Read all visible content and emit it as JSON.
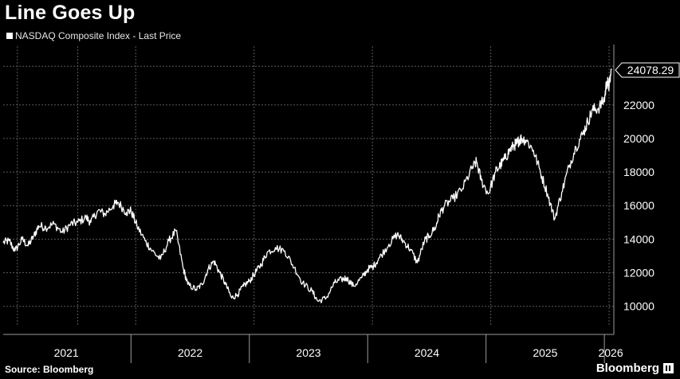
{
  "header": {
    "title": "Line Goes Up"
  },
  "legend": {
    "label": "NASDAQ Composite Index - Last Price"
  },
  "footer": {
    "source": "Source: Bloomberg",
    "brand": "Bloomberg"
  },
  "colors": {
    "background": "#000000",
    "line": "#ffffff",
    "grid": "#5a5a5a",
    "text": "#ffffff"
  },
  "chart_data": {
    "type": "line",
    "title": "Line Goes Up",
    "xlabel": "",
    "ylabel": "",
    "x_tick_labels": [
      "2021",
      "2022",
      "2023",
      "2024",
      "2025",
      "2026"
    ],
    "y_ticks": [
      10000,
      12000,
      14000,
      16000,
      18000,
      20000,
      22000
    ],
    "ylim": [
      8800,
      25500
    ],
    "xlim": [
      2020.92,
      2026.08
    ],
    "grid": true,
    "last_price_label": "24078.29",
    "series": [
      {
        "name": "NASDAQ Composite Index - Last Price",
        "x": [
          2020.92,
          2020.97,
          2021.02,
          2021.08,
          2021.13,
          2021.18,
          2021.22,
          2021.28,
          2021.35,
          2021.42,
          2021.49,
          2021.55,
          2021.62,
          2021.66,
          2021.72,
          2021.78,
          2021.85,
          2021.89,
          2021.96,
          2022.0,
          2022.05,
          2022.12,
          2022.18,
          2022.25,
          2022.32,
          2022.38,
          2022.44,
          2022.48,
          2022.55,
          2022.6,
          2022.65,
          2022.7,
          2022.75,
          2022.8,
          2022.85,
          2022.9,
          2022.95,
          2023.0,
          2023.05,
          2023.1,
          2023.15,
          2023.22,
          2023.3,
          2023.38,
          2023.45,
          2023.53,
          2023.58,
          2023.65,
          2023.72,
          2023.78,
          2023.82,
          2023.88,
          2023.95,
          2024.0,
          2024.05,
          2024.1,
          2024.18,
          2024.25,
          2024.3,
          2024.36,
          2024.42,
          2024.48,
          2024.52,
          2024.58,
          2024.6,
          2024.65,
          2024.72,
          2024.8,
          2024.88,
          2024.92,
          2024.96,
          2025.02,
          2025.08,
          2025.12,
          2025.16,
          2025.2,
          2025.24,
          2025.26,
          2025.28,
          2025.3,
          2025.34,
          2025.4,
          2025.46,
          2025.52,
          2025.58,
          2025.64,
          2025.7,
          2025.76,
          2025.82,
          2025.86,
          2025.9,
          2025.95,
          2026.0,
          2026.02,
          2026.04,
          2026.06
        ],
        "values": [
          13800,
          13900,
          13300,
          14000,
          13600,
          14200,
          14800,
          14700,
          14900,
          14400,
          14900,
          15000,
          15300,
          15000,
          15700,
          15500,
          16000,
          16200,
          15600,
          15700,
          14800,
          13900,
          13300,
          12800,
          13900,
          14500,
          12300,
          11300,
          11000,
          11300,
          12200,
          12700,
          12000,
          11300,
          10500,
          10700,
          11200,
          11500,
          12000,
          12500,
          13200,
          13500,
          13300,
          12300,
          11400,
          10900,
          10300,
          10500,
          11400,
          11600,
          11700,
          11200,
          11700,
          12200,
          12400,
          12900,
          13700,
          14300,
          13900,
          13400,
          12600,
          13900,
          14200,
          14800,
          15400,
          16000,
          16400,
          17000,
          18200,
          18600,
          17500,
          16700,
          18000,
          18400,
          18800,
          19300,
          19600,
          19700,
          19900,
          20000,
          19900,
          19300,
          18000,
          16700,
          15200,
          16800,
          18300,
          19500,
          20300,
          21000,
          21700,
          21800,
          22300,
          23400,
          23100,
          24078.29
        ]
      }
    ]
  }
}
